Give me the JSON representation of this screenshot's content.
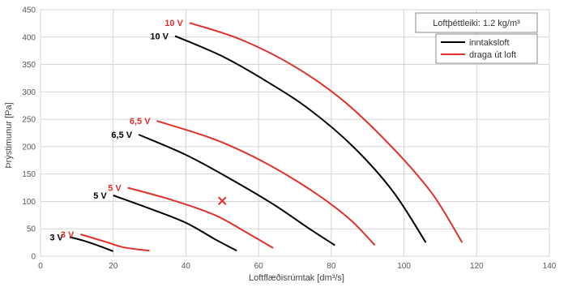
{
  "chart_data": {
    "type": "line",
    "title": "",
    "xlabel": "Loftflæðisrúmtak [dm³/s]",
    "ylabel": "Þrýstimunur [Pa]",
    "xlim": [
      0,
      140
    ],
    "ylim": [
      0,
      450
    ],
    "xticks": [
      0,
      20,
      40,
      60,
      80,
      100,
      120,
      140
    ],
    "yticks": [
      0,
      50,
      100,
      150,
      200,
      250,
      300,
      350,
      400,
      450
    ],
    "grid": true,
    "density_note": "Loftþéttleiki: 1.2 kg/m³",
    "legend": {
      "position": "top-right",
      "entries": [
        {
          "name": "inntaksloft",
          "color": "#000000"
        },
        {
          "name": "draga út loft",
          "color": "#e0302a"
        }
      ]
    },
    "series": [
      {
        "group": "inntaksloft",
        "color": "#000000",
        "label": "3 V",
        "points": [
          [
            8,
            35
          ],
          [
            12,
            28
          ],
          [
            16,
            19
          ],
          [
            20,
            9
          ]
        ]
      },
      {
        "group": "inntaksloft",
        "color": "#000000",
        "label": "5 V",
        "points": [
          [
            20,
            111
          ],
          [
            30,
            87
          ],
          [
            40,
            61
          ],
          [
            48,
            31
          ],
          [
            54,
            10
          ]
        ]
      },
      {
        "group": "inntaksloft",
        "color": "#000000",
        "label": "6,5 V",
        "points": [
          [
            27,
            222
          ],
          [
            40,
            185
          ],
          [
            52,
            142
          ],
          [
            64,
            95
          ],
          [
            74,
            50
          ],
          [
            81,
            20
          ]
        ]
      },
      {
        "group": "inntaksloft",
        "color": "#000000",
        "label": "10 V",
        "points": [
          [
            37,
            402
          ],
          [
            50,
            365
          ],
          [
            62,
            320
          ],
          [
            74,
            268
          ],
          [
            86,
            200
          ],
          [
            97,
            118
          ],
          [
            106,
            25
          ]
        ]
      },
      {
        "group": "draga út loft",
        "color": "#e0302a",
        "label": "3 V",
        "points": [
          [
            11,
            40
          ],
          [
            18,
            26
          ],
          [
            23,
            16
          ],
          [
            30,
            10
          ]
        ]
      },
      {
        "group": "draga út loft",
        "color": "#e0302a",
        "label": "5 V",
        "points": [
          [
            24,
            125
          ],
          [
            36,
            103
          ],
          [
            48,
            75
          ],
          [
            57,
            42
          ],
          [
            64,
            15
          ]
        ]
      },
      {
        "group": "draga út loft",
        "color": "#e0302a",
        "label": "6,5 V",
        "points": [
          [
            32,
            247
          ],
          [
            48,
            213
          ],
          [
            62,
            170
          ],
          [
            75,
            118
          ],
          [
            85,
            68
          ],
          [
            92,
            20
          ]
        ]
      },
      {
        "group": "draga út loft",
        "color": "#e0302a",
        "label": "10 V",
        "points": [
          [
            41,
            426
          ],
          [
            55,
            396
          ],
          [
            70,
            346
          ],
          [
            84,
            280
          ],
          [
            98,
            190
          ],
          [
            108,
            112
          ],
          [
            116,
            25
          ]
        ]
      }
    ],
    "marker": {
      "type": "x",
      "color": "#e0302a",
      "x": 50,
      "y": 101
    }
  }
}
